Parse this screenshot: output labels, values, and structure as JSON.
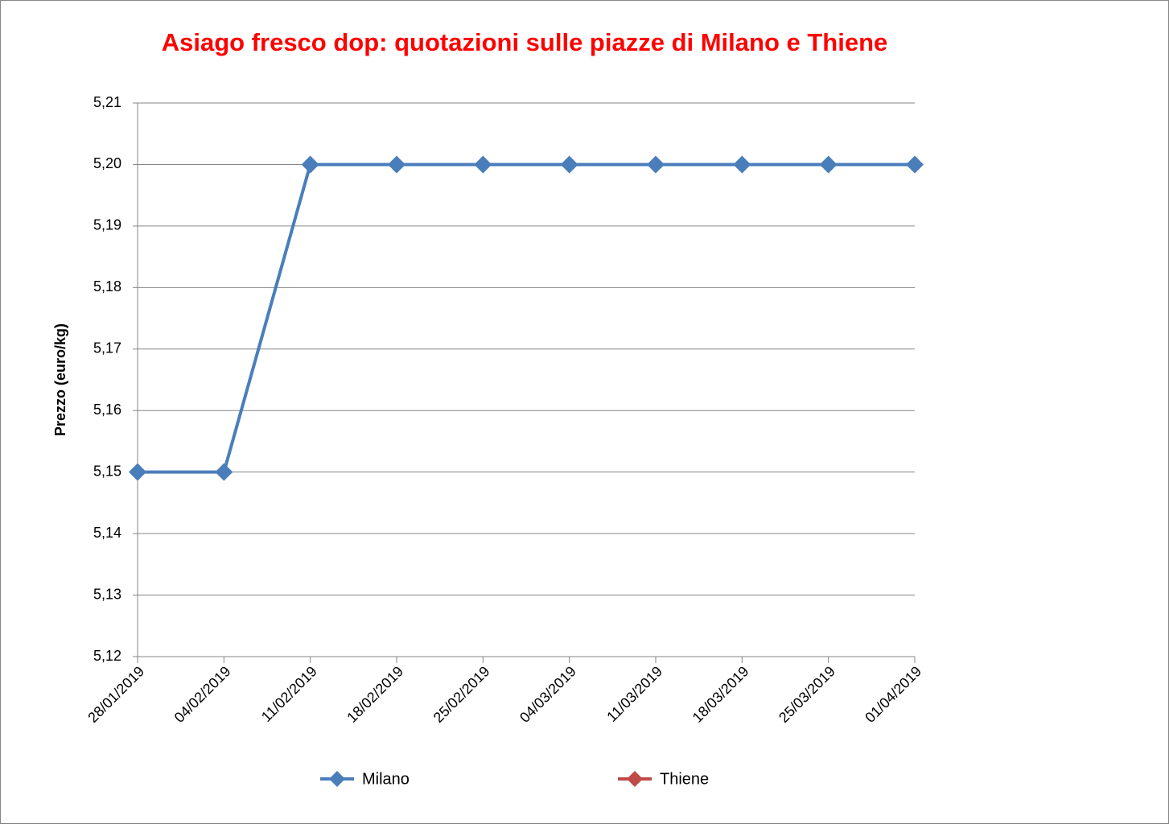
{
  "chart_data": {
    "type": "line",
    "title": "Asiago fresco dop: quotazioni sulle piazze di Milano e Thiene",
    "y_label": "Prezzo (euro/kg)",
    "categories": [
      "28/01/2019",
      "04/02/2019",
      "11/02/2019",
      "18/02/2019",
      "25/02/2019",
      "04/03/2019",
      "11/03/2019",
      "18/03/2019",
      "25/03/2019",
      "01/04/2019"
    ],
    "series": [
      {
        "name": "Milano",
        "color": "#4a7ebb",
        "values": [
          5.15,
          5.15,
          5.2,
          5.2,
          5.2,
          5.2,
          5.2,
          5.2,
          5.2,
          5.2
        ]
      },
      {
        "name": "Thiene",
        "color": "#be4b48",
        "values": [
          null,
          null,
          null,
          null,
          null,
          null,
          null,
          null,
          null,
          null
        ]
      }
    ],
    "ylim": [
      5.12,
      5.21
    ],
    "yticks": [
      {
        "value": 5.12,
        "label": "5,12"
      },
      {
        "value": 5.13,
        "label": "5,13"
      },
      {
        "value": 5.14,
        "label": "5,14"
      },
      {
        "value": 5.15,
        "label": "5,15"
      },
      {
        "value": 5.16,
        "label": "5,16"
      },
      {
        "value": 5.17,
        "label": "5,17"
      },
      {
        "value": 5.18,
        "label": "5,18"
      },
      {
        "value": 5.19,
        "label": "5,19"
      },
      {
        "value": 5.2,
        "label": "5,20"
      },
      {
        "value": 5.21,
        "label": "5,21"
      }
    ],
    "grid": true,
    "legend": "bottom"
  }
}
